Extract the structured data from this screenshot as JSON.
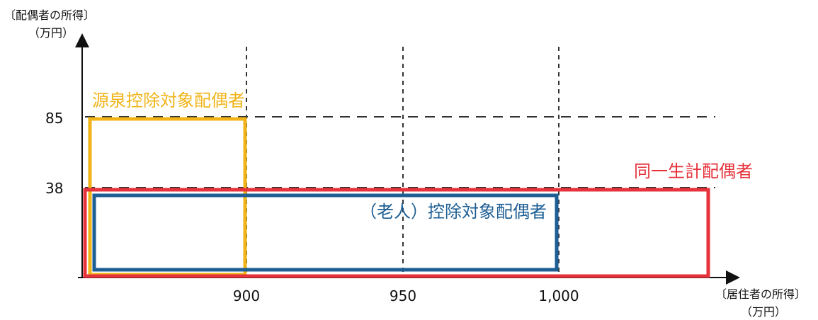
{
  "axes": {
    "y_title_line1": "〔配偶者の所得〕",
    "y_title_line2": "（万円）",
    "x_title_line1": "〔居住者の所得〕",
    "x_title_line2": "（万円）",
    "x_ticks": [
      "900",
      "950",
      "1,000"
    ],
    "y_ticks": [
      "85",
      "38"
    ]
  },
  "regions": {
    "withholding": {
      "label": "源泉控除対象配偶者",
      "color": "#f0b418"
    },
    "same_household": {
      "label": "同一生計配偶者",
      "color": "#e5323b"
    },
    "elderly": {
      "label": "（老人）控除対象配偶者",
      "color": "#1d5e94"
    }
  },
  "chart_data": {
    "type": "diagram",
    "x_ticks": [
      900,
      950,
      1000
    ],
    "y_ticks": [
      85,
      38
    ],
    "regions": [
      {
        "name": "源泉控除対象配偶者",
        "x_max": 900,
        "y_max": 85
      },
      {
        "name": "同一生計配偶者",
        "y_max": 38
      },
      {
        "name": "（老人）控除対象配偶者",
        "x_max": 1000,
        "y_max": 38
      }
    ],
    "grid": "dashed"
  }
}
